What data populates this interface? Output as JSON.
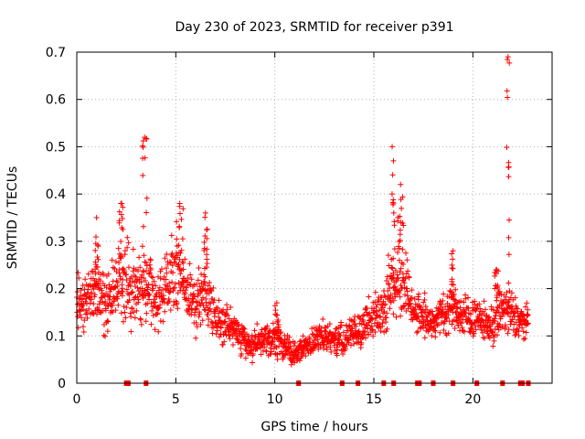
{
  "chart_data": {
    "type": "scatter",
    "title": "Day 230 of 2023, SRMTID for receiver p391",
    "xlabel": "GPS time / hours",
    "ylabel": "SRMTID / TECUs",
    "xlim": [
      0,
      24
    ],
    "ylim": [
      0,
      0.7
    ],
    "xticks": [
      0,
      5,
      10,
      15,
      20
    ],
    "yticks": [
      0,
      0.1,
      0.2,
      0.3,
      0.4,
      0.5,
      0.6,
      0.7
    ],
    "xtick_labels": [
      "0",
      "5",
      "10",
      "15",
      "20"
    ],
    "ytick_labels": [
      "0",
      "0.1",
      "0.2",
      "0.3",
      "0.4",
      "0.5",
      "0.6",
      "0.7"
    ],
    "grid": true,
    "marker": "+",
    "color": "#ff0000",
    "profile_hours": [
      0,
      0.5,
      1,
      1.5,
      2,
      2.5,
      3,
      3.5,
      4,
      4.5,
      5,
      5.5,
      6,
      6.5,
      7,
      7.5,
      8,
      8.5,
      9,
      9.5,
      10,
      10.5,
      11,
      11.5,
      12,
      12.5,
      13,
      13.5,
      14,
      14.5,
      15,
      15.5,
      16,
      16.5,
      17,
      17.5,
      18,
      18.5,
      19,
      19.5,
      20,
      20.5,
      21,
      21.5,
      22,
      22.5
    ],
    "profile_center": [
      0.17,
      0.19,
      0.2,
      0.17,
      0.2,
      0.22,
      0.19,
      0.21,
      0.17,
      0.21,
      0.23,
      0.2,
      0.17,
      0.19,
      0.14,
      0.13,
      0.11,
      0.09,
      0.08,
      0.09,
      0.09,
      0.08,
      0.06,
      0.08,
      0.09,
      0.1,
      0.09,
      0.09,
      0.11,
      0.12,
      0.14,
      0.16,
      0.22,
      0.22,
      0.15,
      0.14,
      0.13,
      0.15,
      0.16,
      0.14,
      0.14,
      0.13,
      0.12,
      0.16,
      0.14,
      0.13
    ],
    "profile_spread": [
      0.05,
      0.05,
      0.06,
      0.05,
      0.06,
      0.07,
      0.07,
      0.07,
      0.06,
      0.06,
      0.07,
      0.06,
      0.05,
      0.05,
      0.04,
      0.04,
      0.03,
      0.03,
      0.03,
      0.03,
      0.03,
      0.03,
      0.02,
      0.02,
      0.03,
      0.03,
      0.03,
      0.03,
      0.03,
      0.04,
      0.04,
      0.05,
      0.07,
      0.06,
      0.04,
      0.04,
      0.03,
      0.04,
      0.04,
      0.04,
      0.04,
      0.03,
      0.04,
      0.05,
      0.05,
      0.03
    ],
    "points_per_hour": 80,
    "data_end_hour": 22.8,
    "peaks": [
      {
        "name": "peak-1.0h",
        "x": [
          0.9,
          1.1
        ],
        "y_max": 0.35
      },
      {
        "name": "peak-2.2h",
        "x": [
          2.1,
          2.35
        ],
        "y_max": 0.38
      },
      {
        "name": "peak-3.4h",
        "x": [
          3.3,
          3.55
        ],
        "y_max": 0.52
      },
      {
        "name": "peak-5.2h",
        "x": [
          5.0,
          5.4
        ],
        "y_max": 0.38
      },
      {
        "name": "peak-6.5h",
        "x": [
          6.4,
          6.6
        ],
        "y_max": 0.36
      },
      {
        "name": "peak-10.1h",
        "x": [
          10.0,
          10.2
        ],
        "y_max": 0.17
      },
      {
        "name": "peak-16.0h",
        "x": [
          15.8,
          16.05
        ],
        "y_max": 0.5
      },
      {
        "name": "peak-16.4h",
        "x": [
          16.2,
          16.5
        ],
        "y_max": 0.42
      },
      {
        "name": "peak-19.0h",
        "x": [
          18.9,
          19.1
        ],
        "y_max": 0.28
      },
      {
        "name": "peak-21.2h",
        "x": [
          21.1,
          21.3
        ],
        "y_max": 0.24
      },
      {
        "name": "peak-21.8h",
        "x": [
          21.7,
          21.85
        ],
        "y_max": 0.69
      }
    ],
    "gap_markers_hours": [
      2.5,
      2.6,
      3.5,
      11.2,
      13.4,
      14.2,
      15.5,
      16.0,
      17.2,
      17.3,
      18.0,
      19.0,
      20.2,
      21.5,
      22.4,
      22.5,
      22.8
    ]
  }
}
